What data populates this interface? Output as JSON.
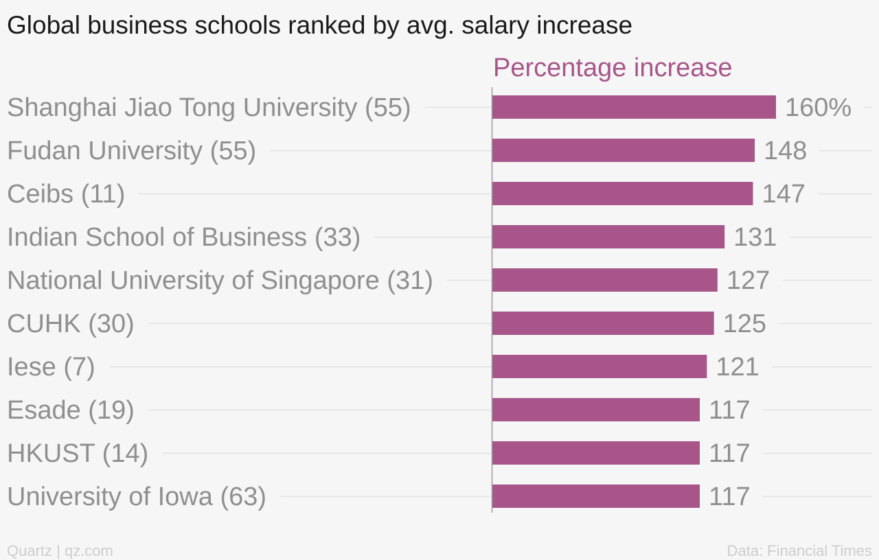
{
  "chart_data": {
    "type": "bar",
    "orientation": "horizontal",
    "title": "Global business schools ranked by avg. salary increase",
    "series": [
      {
        "name": "Percentage increase",
        "color": "#a8558a",
        "values": [
          160,
          148,
          147,
          131,
          127,
          125,
          121,
          117,
          117,
          117
        ],
        "value_labels": [
          "160%",
          "148",
          "147",
          "131",
          "127",
          "125",
          "121",
          "117",
          "117",
          "117"
        ]
      }
    ],
    "categories": [
      "Shanghai Jiao Tong University (55)",
      "Fudan University (55)",
      "Ceibs (11)",
      "Indian School of Business (33)",
      "National University of Singapore (31)",
      "CUHK (30)",
      "Iese (7)",
      "Esade (19)",
      "HKUST (14)",
      "University of Iowa (63)"
    ],
    "xlim": [
      0,
      160
    ],
    "grid": true
  },
  "footer": {
    "source_left": "Quartz | qz.com",
    "source_right": "Data: Financial Times"
  },
  "colors": {
    "bar": "#a8558a",
    "background": "#f6f6f6",
    "label": "#8f8f8f",
    "gridline": "#e6e6e6",
    "axis": "#9a9a9a"
  }
}
